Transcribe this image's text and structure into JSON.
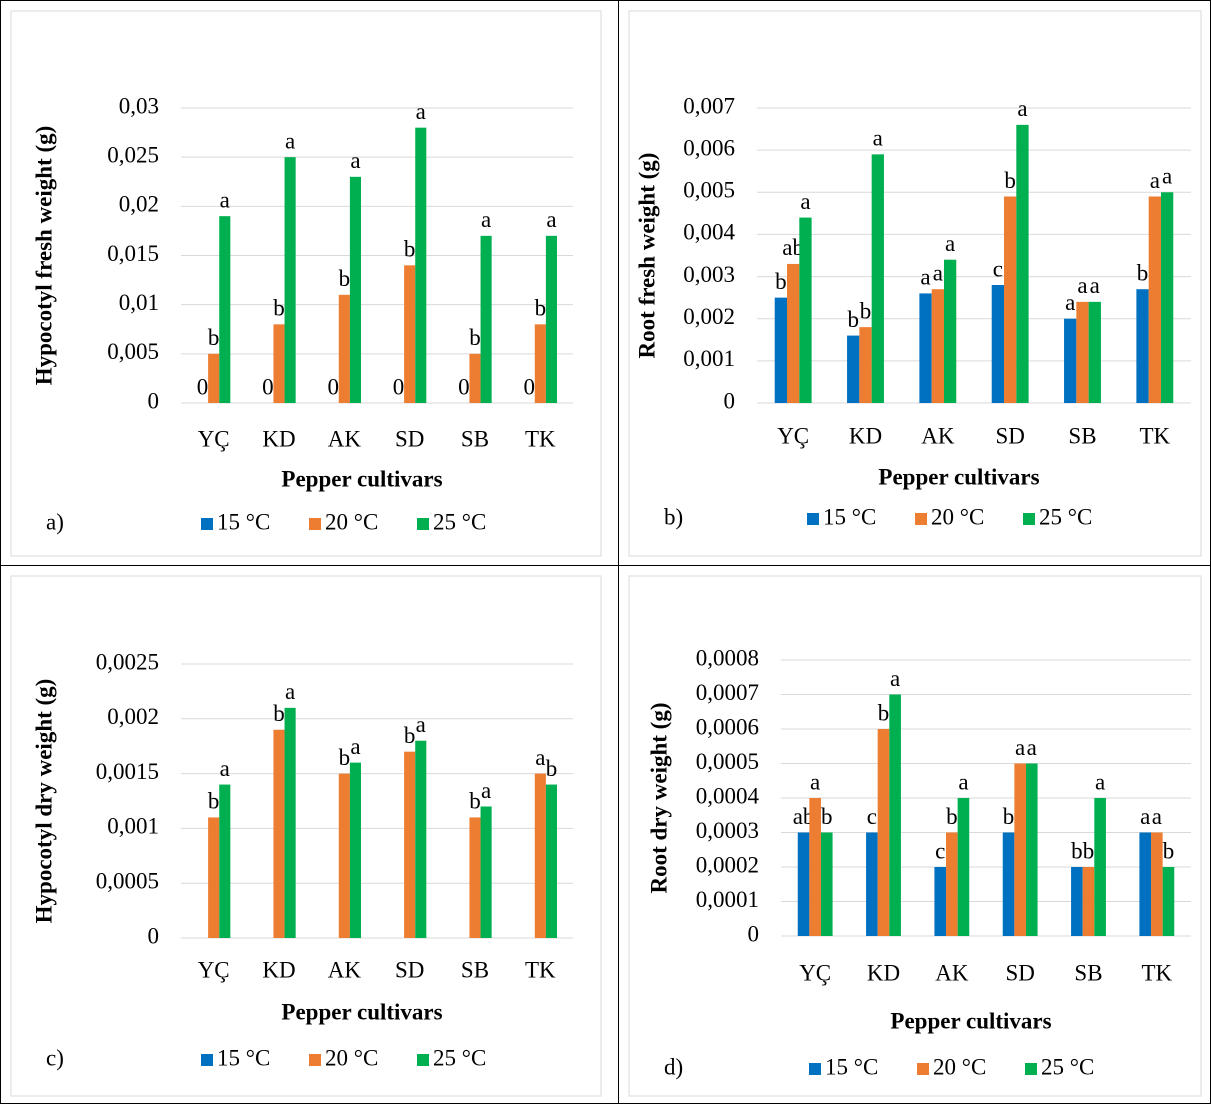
{
  "chart_data": [
    {
      "type": "bar",
      "panel_label": "a)",
      "y_label": "Hypocotyl fresh weight (g)",
      "x_label": "Pepper cultivars",
      "categories": [
        "YÇ",
        "KD",
        "AK",
        "SD",
        "SB",
        "TK"
      ],
      "ylim": [
        0,
        0.03
      ],
      "yticks": [
        0,
        {
          "value": 0.005,
          "label": "0,005"
        },
        {
          "value": 0.01,
          "label": "0,01"
        },
        {
          "value": 0.015,
          "label": "0,015"
        },
        {
          "value": 0.02,
          "label": "0,02"
        },
        {
          "value": 0.025,
          "label": "0,025"
        },
        {
          "value": 0.03,
          "label": "0,03"
        }
      ],
      "grid": true,
      "series": [
        {
          "name": "15 °C",
          "color": "#0070c0",
          "values": [
            0,
            0,
            0,
            0,
            0,
            0
          ],
          "letters": [
            "0",
            "0",
            "0",
            "0",
            "0",
            "0"
          ]
        },
        {
          "name": "20 °C",
          "color": "#ed7d31",
          "values": [
            0.005,
            0.008,
            0.011,
            0.014,
            0.005,
            0.008
          ],
          "letters": [
            "b",
            "b",
            "b",
            "b",
            "b",
            "b"
          ]
        },
        {
          "name": "25 °C",
          "color": "#00b050",
          "values": [
            0.019,
            0.025,
            0.023,
            0.028,
            0.017,
            0.017
          ],
          "letters": [
            "a",
            "a",
            "a",
            "a",
            "a",
            "a"
          ]
        }
      ]
    },
    {
      "type": "bar",
      "panel_label": "b)",
      "y_label": "Root fresh weight (g)",
      "x_label": "Pepper cultivars",
      "categories": [
        "YÇ",
        "KD",
        "AK",
        "SD",
        "SB",
        "TK"
      ],
      "ylim": [
        0,
        0.007
      ],
      "yticks": [
        0,
        {
          "value": 0.001,
          "label": "0,001"
        },
        {
          "value": 0.002,
          "label": "0,002"
        },
        {
          "value": 0.003,
          "label": "0,003"
        },
        {
          "value": 0.004,
          "label": "0,004"
        },
        {
          "value": 0.005,
          "label": "0,005"
        },
        {
          "value": 0.006,
          "label": "0,006"
        },
        {
          "value": 0.007,
          "label": "0,007"
        }
      ],
      "grid": true,
      "series": [
        {
          "name": "15 °C",
          "color": "#0070c0",
          "values": [
            0.0025,
            0.0016,
            0.0026,
            0.0028,
            0.002,
            0.0027
          ],
          "letters": [
            "b",
            "b",
            "a",
            "c",
            "a",
            "b"
          ]
        },
        {
          "name": "20 °C",
          "color": "#ed7d31",
          "values": [
            0.0033,
            0.0018,
            0.0027,
            0.0049,
            0.0024,
            0.0049
          ],
          "letters": [
            "ab",
            "b",
            "a",
            "b",
            "a",
            "a"
          ]
        },
        {
          "name": "25 °C",
          "color": "#00b050",
          "values": [
            0.0044,
            0.0059,
            0.0034,
            0.0066,
            0.0024,
            0.005
          ],
          "letters": [
            "a",
            "a",
            "a",
            "a",
            "a",
            "a"
          ]
        }
      ]
    },
    {
      "type": "bar",
      "panel_label": "c)",
      "y_label": "Hypocotyl dry weight (g)",
      "x_label": "Pepper cultivars",
      "categories": [
        "YÇ",
        "KD",
        "AK",
        "SD",
        "SB",
        "TK"
      ],
      "ylim": [
        0,
        0.0025
      ],
      "yticks": [
        0,
        {
          "value": 0.0005,
          "label": "0,0005"
        },
        {
          "value": 0.001,
          "label": "0,001"
        },
        {
          "value": 0.0015,
          "label": "0,0015"
        },
        {
          "value": 0.002,
          "label": "0,002"
        },
        {
          "value": 0.0025,
          "label": "0,0025"
        }
      ],
      "grid": true,
      "series": [
        {
          "name": "15 °C",
          "color": "#0070c0",
          "values": [
            0,
            0,
            0,
            0,
            0,
            0
          ],
          "letters": [
            null,
            null,
            null,
            null,
            null,
            null
          ]
        },
        {
          "name": "20 °C",
          "color": "#ed7d31",
          "values": [
            0.0011,
            0.0019,
            0.0015,
            0.0017,
            0.0011,
            0.0015
          ],
          "letters": [
            "b",
            "b",
            "b",
            "b",
            "b",
            "a"
          ]
        },
        {
          "name": "25 °C",
          "color": "#00b050",
          "values": [
            0.0014,
            0.0021,
            0.0016,
            0.0018,
            0.0012,
            0.0014
          ],
          "letters": [
            "a",
            "a",
            "a",
            "a",
            "a",
            "b"
          ]
        }
      ]
    },
    {
      "type": "bar",
      "panel_label": "d)",
      "y_label": "Root dry weight (g)",
      "x_label": "Pepper cultivars",
      "categories": [
        "YÇ",
        "KD",
        "AK",
        "SD",
        "SB",
        "TK"
      ],
      "ylim": [
        0,
        0.0008
      ],
      "yticks": [
        0,
        {
          "value": 0.0001,
          "label": "0,0001"
        },
        {
          "value": 0.0002,
          "label": "0,0002"
        },
        {
          "value": 0.0003,
          "label": "0,0003"
        },
        {
          "value": 0.0004,
          "label": "0,0004"
        },
        {
          "value": 0.0005,
          "label": "0,0005"
        },
        {
          "value": 0.0006,
          "label": "0,0006"
        },
        {
          "value": 0.0007,
          "label": "0,0007"
        },
        {
          "value": 0.0008,
          "label": "0,0008"
        }
      ],
      "grid": true,
      "series": [
        {
          "name": "15 °C",
          "color": "#0070c0",
          "values": [
            0.0003,
            0.0003,
            0.0002,
            0.0003,
            0.0002,
            0.0003
          ],
          "letters": [
            "ab",
            "c",
            "c",
            "b",
            "b",
            "a"
          ]
        },
        {
          "name": "20 °C",
          "color": "#ed7d31",
          "values": [
            0.0004,
            0.0006,
            0.0003,
            0.0005,
            0.0002,
            0.0003
          ],
          "letters": [
            "a",
            "b",
            "b",
            "a",
            "b",
            "a"
          ]
        },
        {
          "name": "25 °C",
          "color": "#00b050",
          "values": [
            0.0003,
            0.0007,
            0.0004,
            0.0005,
            0.0004,
            0.0002
          ],
          "letters": [
            "b",
            "a",
            "a",
            "a",
            "a",
            "b"
          ]
        }
      ]
    }
  ]
}
